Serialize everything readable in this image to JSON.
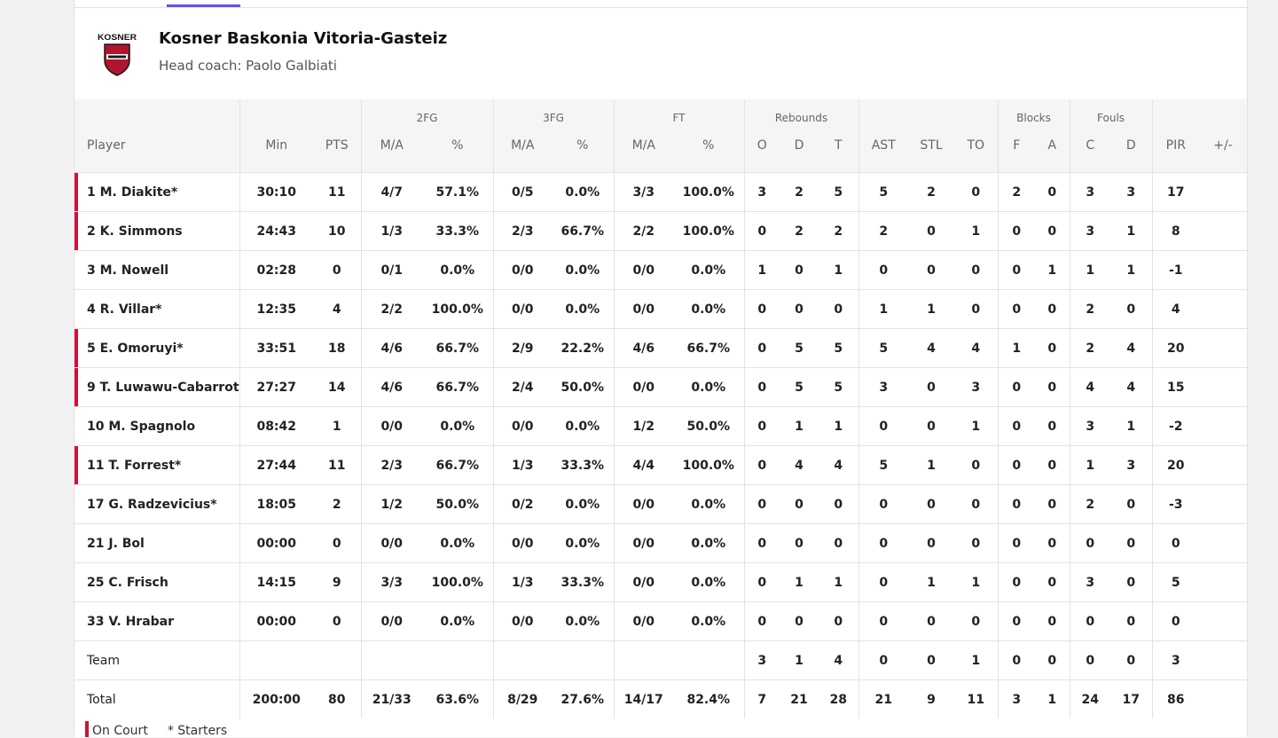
{
  "team": {
    "logo_text": "KOSNER",
    "name": "Kosner Baskonia Vitoria-Gasteiz",
    "coach": "Head coach: Paolo Galbiati",
    "accent_color": "#d0103a"
  },
  "groups": {
    "fg2": "2FG",
    "fg3": "3FG",
    "ft": "FT",
    "rebounds": "Rebounds",
    "blocks": "Blocks",
    "fouls": "Fouls"
  },
  "columns": [
    "Player",
    "Min",
    "PTS",
    "M/A",
    "%",
    "M/A",
    "%",
    "M/A",
    "%",
    "O",
    "D",
    "T",
    "AST",
    "STL",
    "TO",
    "F",
    "A",
    "C",
    "D",
    "PIR",
    "+/-"
  ],
  "players": [
    {
      "player": "1 M. Diakite*",
      "on_court": true,
      "min": "30:10",
      "pts": "11",
      "fg2_ma": "4/7",
      "fg2_pct": "57.1%",
      "fg3_ma": "0/5",
      "fg3_pct": "0.0%",
      "ft_ma": "3/3",
      "ft_pct": "100.0%",
      "reb_o": "3",
      "reb_d": "2",
      "reb_t": "5",
      "ast": "5",
      "stl": "2",
      "to": "0",
      "blk_f": "2",
      "blk_a": "0",
      "foul_c": "3",
      "foul_d": "3",
      "pir": "17",
      "pm": ""
    },
    {
      "player": "2 K. Simmons",
      "on_court": true,
      "min": "24:43",
      "pts": "10",
      "fg2_ma": "1/3",
      "fg2_pct": "33.3%",
      "fg3_ma": "2/3",
      "fg3_pct": "66.7%",
      "ft_ma": "2/2",
      "ft_pct": "100.0%",
      "reb_o": "0",
      "reb_d": "2",
      "reb_t": "2",
      "ast": "2",
      "stl": "0",
      "to": "1",
      "blk_f": "0",
      "blk_a": "0",
      "foul_c": "3",
      "foul_d": "1",
      "pir": "8",
      "pm": ""
    },
    {
      "player": "3 M. Nowell",
      "on_court": false,
      "min": "02:28",
      "pts": "0",
      "fg2_ma": "0/1",
      "fg2_pct": "0.0%",
      "fg3_ma": "0/0",
      "fg3_pct": "0.0%",
      "ft_ma": "0/0",
      "ft_pct": "0.0%",
      "reb_o": "1",
      "reb_d": "0",
      "reb_t": "1",
      "ast": "0",
      "stl": "0",
      "to": "0",
      "blk_f": "0",
      "blk_a": "1",
      "foul_c": "1",
      "foul_d": "1",
      "pir": "-1",
      "pm": ""
    },
    {
      "player": "4 R. Villar*",
      "on_court": false,
      "min": "12:35",
      "pts": "4",
      "fg2_ma": "2/2",
      "fg2_pct": "100.0%",
      "fg3_ma": "0/0",
      "fg3_pct": "0.0%",
      "ft_ma": "0/0",
      "ft_pct": "0.0%",
      "reb_o": "0",
      "reb_d": "0",
      "reb_t": "0",
      "ast": "1",
      "stl": "1",
      "to": "0",
      "blk_f": "0",
      "blk_a": "0",
      "foul_c": "2",
      "foul_d": "0",
      "pir": "4",
      "pm": ""
    },
    {
      "player": "5 E. Omoruyi*",
      "on_court": true,
      "min": "33:51",
      "pts": "18",
      "fg2_ma": "4/6",
      "fg2_pct": "66.7%",
      "fg3_ma": "2/9",
      "fg3_pct": "22.2%",
      "ft_ma": "4/6",
      "ft_pct": "66.7%",
      "reb_o": "0",
      "reb_d": "5",
      "reb_t": "5",
      "ast": "5",
      "stl": "4",
      "to": "4",
      "blk_f": "1",
      "blk_a": "0",
      "foul_c": "2",
      "foul_d": "4",
      "pir": "20",
      "pm": ""
    },
    {
      "player": "9 T. Luwawu-Cabarrot",
      "on_court": true,
      "min": "27:27",
      "pts": "14",
      "fg2_ma": "4/6",
      "fg2_pct": "66.7%",
      "fg3_ma": "2/4",
      "fg3_pct": "50.0%",
      "ft_ma": "0/0",
      "ft_pct": "0.0%",
      "reb_o": "0",
      "reb_d": "5",
      "reb_t": "5",
      "ast": "3",
      "stl": "0",
      "to": "3",
      "blk_f": "0",
      "blk_a": "0",
      "foul_c": "4",
      "foul_d": "4",
      "pir": "15",
      "pm": ""
    },
    {
      "player": "10 M. Spagnolo",
      "on_court": false,
      "min": "08:42",
      "pts": "1",
      "fg2_ma": "0/0",
      "fg2_pct": "0.0%",
      "fg3_ma": "0/0",
      "fg3_pct": "0.0%",
      "ft_ma": "1/2",
      "ft_pct": "50.0%",
      "reb_o": "0",
      "reb_d": "1",
      "reb_t": "1",
      "ast": "0",
      "stl": "0",
      "to": "1",
      "blk_f": "0",
      "blk_a": "0",
      "foul_c": "3",
      "foul_d": "1",
      "pir": "-2",
      "pm": ""
    },
    {
      "player": "11 T. Forrest*",
      "on_court": true,
      "min": "27:44",
      "pts": "11",
      "fg2_ma": "2/3",
      "fg2_pct": "66.7%",
      "fg3_ma": "1/3",
      "fg3_pct": "33.3%",
      "ft_ma": "4/4",
      "ft_pct": "100.0%",
      "reb_o": "0",
      "reb_d": "4",
      "reb_t": "4",
      "ast": "5",
      "stl": "1",
      "to": "0",
      "blk_f": "0",
      "blk_a": "0",
      "foul_c": "1",
      "foul_d": "3",
      "pir": "20",
      "pm": ""
    },
    {
      "player": "17 G. Radzevicius*",
      "on_court": false,
      "min": "18:05",
      "pts": "2",
      "fg2_ma": "1/2",
      "fg2_pct": "50.0%",
      "fg3_ma": "0/2",
      "fg3_pct": "0.0%",
      "ft_ma": "0/0",
      "ft_pct": "0.0%",
      "reb_o": "0",
      "reb_d": "0",
      "reb_t": "0",
      "ast": "0",
      "stl": "0",
      "to": "0",
      "blk_f": "0",
      "blk_a": "0",
      "foul_c": "2",
      "foul_d": "0",
      "pir": "-3",
      "pm": ""
    },
    {
      "player": "21 J. Bol",
      "on_court": false,
      "min": "00:00",
      "pts": "0",
      "fg2_ma": "0/0",
      "fg2_pct": "0.0%",
      "fg3_ma": "0/0",
      "fg3_pct": "0.0%",
      "ft_ma": "0/0",
      "ft_pct": "0.0%",
      "reb_o": "0",
      "reb_d": "0",
      "reb_t": "0",
      "ast": "0",
      "stl": "0",
      "to": "0",
      "blk_f": "0",
      "blk_a": "0",
      "foul_c": "0",
      "foul_d": "0",
      "pir": "0",
      "pm": ""
    },
    {
      "player": "25 C. Frisch",
      "on_court": false,
      "min": "14:15",
      "pts": "9",
      "fg2_ma": "3/3",
      "fg2_pct": "100.0%",
      "fg3_ma": "1/3",
      "fg3_pct": "33.3%",
      "ft_ma": "0/0",
      "ft_pct": "0.0%",
      "reb_o": "0",
      "reb_d": "1",
      "reb_t": "1",
      "ast": "0",
      "stl": "1",
      "to": "1",
      "blk_f": "0",
      "blk_a": "0",
      "foul_c": "3",
      "foul_d": "0",
      "pir": "5",
      "pm": ""
    },
    {
      "player": "33 V. Hrabar",
      "on_court": false,
      "min": "00:00",
      "pts": "0",
      "fg2_ma": "0/0",
      "fg2_pct": "0.0%",
      "fg3_ma": "0/0",
      "fg3_pct": "0.0%",
      "ft_ma": "0/0",
      "ft_pct": "0.0%",
      "reb_o": "0",
      "reb_d": "0",
      "reb_t": "0",
      "ast": "0",
      "stl": "0",
      "to": "0",
      "blk_f": "0",
      "blk_a": "0",
      "foul_c": "0",
      "foul_d": "0",
      "pir": "0",
      "pm": ""
    }
  ],
  "team_row": {
    "player": "Team",
    "min": "",
    "pts": "",
    "fg2_ma": "",
    "fg2_pct": "",
    "fg3_ma": "",
    "fg3_pct": "",
    "ft_ma": "",
    "ft_pct": "",
    "reb_o": "3",
    "reb_d": "1",
    "reb_t": "4",
    "ast": "0",
    "stl": "0",
    "to": "1",
    "blk_f": "0",
    "blk_a": "0",
    "foul_c": "0",
    "foul_d": "0",
    "pir": "3",
    "pm": ""
  },
  "total_row": {
    "player": "Total",
    "min": "200:00",
    "pts": "80",
    "fg2_ma": "21/33",
    "fg2_pct": "63.6%",
    "fg3_ma": "8/29",
    "fg3_pct": "27.6%",
    "ft_ma": "14/17",
    "ft_pct": "82.4%",
    "reb_o": "7",
    "reb_d": "21",
    "reb_t": "28",
    "ast": "21",
    "stl": "9",
    "to": "11",
    "blk_f": "3",
    "blk_a": "1",
    "foul_c": "24",
    "foul_d": "17",
    "pir": "86",
    "pm": ""
  },
  "legend": {
    "on_court": "On Court",
    "starters": "* Starters"
  }
}
